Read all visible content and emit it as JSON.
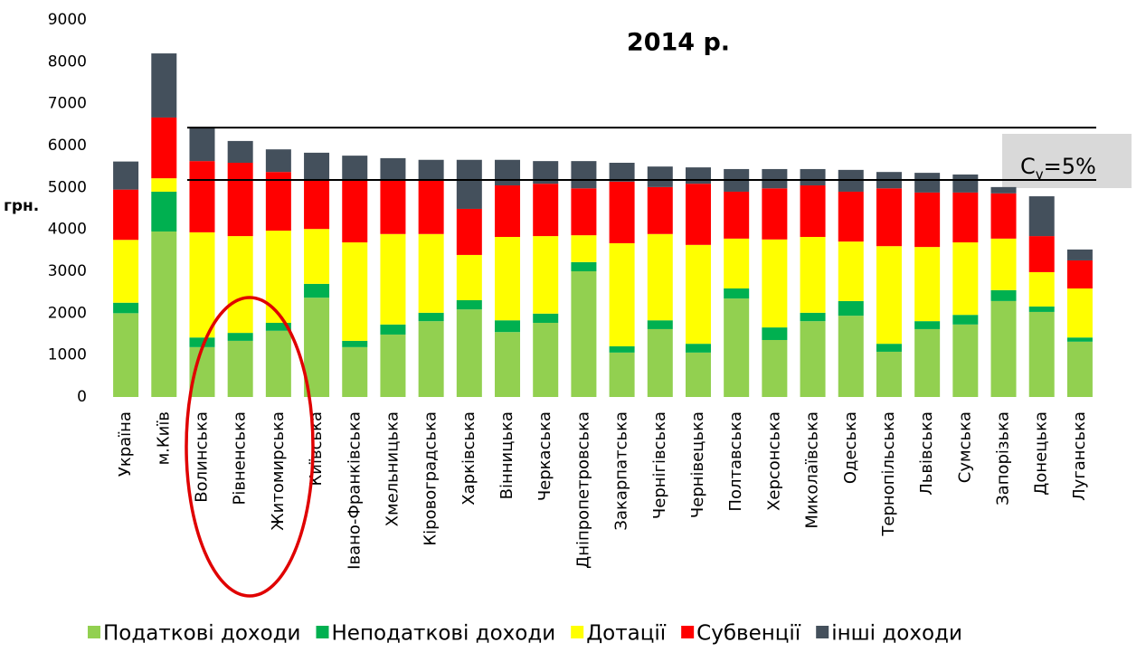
{
  "chart_data": {
    "type": "stacked_bar",
    "title": "2014 р.",
    "y_label": "грн.",
    "annotation": {
      "base": "C",
      "sub": "v",
      "rest": "=5%"
    },
    "reference_lines": [
      6430,
      5180
    ],
    "categories": [
      "Україна",
      "м.Київ",
      "Волинська",
      "Рівненська",
      "Житомирська",
      "Київська",
      "Івано-Франківська",
      "Хмельницька",
      "Кіровоградська",
      "Харківська",
      "Вінницька",
      "Черкаська",
      "Дніпропетровська",
      "Закарпатська",
      "Чернігівська",
      "Чернівецька",
      "Полтавська",
      "Херсонська",
      "Миколаївська",
      "Одеська",
      "Тернопільська",
      "Львівська",
      "Сумська",
      "Запорізька",
      "Донецька",
      "Луганська"
    ],
    "series": [
      {
        "name": "Податкові доходи",
        "color": "#92d050",
        "values": [
          2000,
          3950,
          1190,
          1340,
          1580,
          2370,
          1190,
          1490,
          1810,
          2090,
          1550,
          1770,
          3000,
          1060,
          1620,
          1060,
          2350,
          1360,
          1810,
          1940,
          1080,
          1620,
          1730,
          2290,
          2030,
          1320
        ]
      },
      {
        "name": "Неподаткові доходи",
        "color": "#00b050",
        "values": [
          250,
          950,
          230,
          190,
          190,
          330,
          150,
          240,
          200,
          220,
          280,
          220,
          220,
          150,
          210,
          210,
          240,
          300,
          200,
          350,
          190,
          190,
          230,
          260,
          130,
          100
        ]
      },
      {
        "name": "Дотації",
        "color": "#ffff00",
        "values": [
          1500,
          320,
          2510,
          2310,
          2200,
          1310,
          2350,
          2160,
          1880,
          1080,
          1990,
          1850,
          640,
          2460,
          2060,
          2360,
          1190,
          2100,
          1810,
          1420,
          2330,
          1770,
          1730,
          1230,
          820,
          1170
        ]
      },
      {
        "name": "Субвенції",
        "color": "#ff0000",
        "values": [
          1200,
          1450,
          1700,
          1750,
          1400,
          1170,
          1510,
          1310,
          1270,
          1100,
          1230,
          1250,
          1120,
          1470,
          1120,
          1460,
          1120,
          1220,
          1230,
          1190,
          1380,
          1300,
          1190,
          1080,
          860,
          670
        ]
      },
      {
        "name": "інші доходи",
        "color": "#44505c",
        "values": [
          670,
          1530,
          780,
          520,
          540,
          650,
          560,
          500,
          500,
          1170,
          610,
          540,
          650,
          450,
          490,
          390,
          540,
          460,
          390,
          520,
          390,
          470,
          430,
          150,
          950,
          260
        ]
      }
    ],
    "ylim": [
      0,
      9000
    ],
    "yticks": [
      0,
      1000,
      2000,
      3000,
      4000,
      5000,
      6000,
      7000,
      8000,
      9000
    ],
    "grid": false
  }
}
